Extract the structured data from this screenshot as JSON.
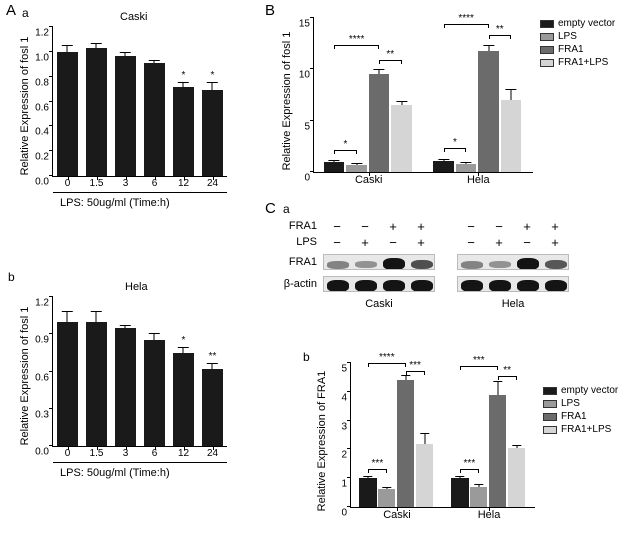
{
  "panelA": {
    "label_A": "A",
    "label_a": "a",
    "label_b": "b",
    "chart_a": {
      "type": "bar",
      "title": "Caski",
      "ylabel": "Relative Expression of fosl 1",
      "xlabel": "LPS: 50ug/ml (Time:h)",
      "categories": [
        "0",
        "1.5",
        "3",
        "6",
        "12",
        "24"
      ],
      "values": [
        1.0,
        1.03,
        0.97,
        0.91,
        0.72,
        0.69
      ],
      "errors": [
        0.05,
        0.03,
        0.02,
        0.02,
        0.03,
        0.06
      ],
      "sig": [
        "",
        "",
        "",
        "",
        "*",
        "*"
      ],
      "ylim": [
        0,
        1.2
      ],
      "ytick_step": 0.2,
      "bar_color": "#1a1a1a",
      "background_color": "#ffffff"
    },
    "chart_b": {
      "type": "bar",
      "title": "Hela",
      "ylabel": "Relative Expression of fosl 1",
      "xlabel": "LPS: 50ug/ml (Time:h)",
      "categories": [
        "0",
        "1.5",
        "3",
        "6",
        "12",
        "24"
      ],
      "values": [
        1.0,
        1.0,
        0.95,
        0.85,
        0.75,
        0.62
      ],
      "errors": [
        0.08,
        0.08,
        0.02,
        0.05,
        0.04,
        0.04
      ],
      "sig": [
        "",
        "",
        "",
        "",
        "*",
        "**"
      ],
      "ylim": [
        0,
        1.2
      ],
      "ytick_step": 0.3,
      "bar_color": "#1a1a1a",
      "background_color": "#ffffff"
    }
  },
  "panelB": {
    "label": "B",
    "type": "grouped-bar",
    "ylabel": "Relative Expression of fosl 1",
    "groups": [
      "Caski",
      "Hela"
    ],
    "series": [
      "empty vector",
      "LPS",
      "FRA1",
      "FRA1+LPS"
    ],
    "series_colors": [
      "#1a1a1a",
      "#9a9a9a",
      "#6b6b6b",
      "#d5d5d5"
    ],
    "values": [
      [
        1.0,
        0.7,
        9.5,
        6.5
      ],
      [
        1.1,
        0.8,
        11.8,
        7.0
      ]
    ],
    "errors": [
      [
        0.1,
        0.1,
        0.4,
        0.3
      ],
      [
        0.1,
        0.1,
        0.5,
        1.0
      ]
    ],
    "ylim": [
      0,
      15
    ],
    "ytick_step": 5,
    "sig_pairs": [
      {
        "group": 0,
        "a": 0,
        "b": 1,
        "label": "*",
        "y": 2.0
      },
      {
        "group": 0,
        "a": 2,
        "b": 3,
        "label": "**",
        "y": 10.8
      },
      {
        "group": 0,
        "a": 0,
        "b": 2,
        "label": "****",
        "y": 12.3
      },
      {
        "group": 1,
        "a": 0,
        "b": 1,
        "label": "*",
        "y": 2.2
      },
      {
        "group": 1,
        "a": 2,
        "b": 3,
        "label": "**",
        "y": 13.2
      },
      {
        "group": 1,
        "a": 0,
        "b": 2,
        "label": "****",
        "y": 14.3
      }
    ]
  },
  "panelC": {
    "label_C": "C",
    "label_a": "a",
    "label_b": "b",
    "blot": {
      "row_labels_top": [
        "FRA1",
        "LPS"
      ],
      "row_labels_side": [
        "FRA1",
        "β-actin"
      ],
      "conditions": [
        "−",
        "−",
        "+",
        "+"
      ],
      "conditions2": [
        "−",
        "+",
        "−",
        "+"
      ],
      "cell_lines": [
        "Caski",
        "Hela"
      ],
      "fra1_intensity": [
        [
          0.25,
          0.15,
          1.0,
          0.6
        ],
        [
          0.25,
          0.15,
          1.0,
          0.55
        ]
      ],
      "actin_intensity": [
        [
          1,
          1,
          1,
          1
        ],
        [
          1,
          1,
          1,
          1
        ]
      ]
    },
    "chart_b": {
      "type": "grouped-bar",
      "ylabel": "Relative Expression of FRA1",
      "groups": [
        "Caski",
        "Hela"
      ],
      "series": [
        "empty vector",
        "LPS",
        "FRA1",
        "FRA1+LPS"
      ],
      "series_colors": [
        "#1a1a1a",
        "#9a9a9a",
        "#6b6b6b",
        "#d5d5d5"
      ],
      "values": [
        [
          1.0,
          0.62,
          4.4,
          2.2
        ],
        [
          1.0,
          0.7,
          3.9,
          2.05
        ]
      ],
      "errors": [
        [
          0.05,
          0.05,
          0.15,
          0.35
        ],
        [
          0.05,
          0.05,
          0.45,
          0.08
        ]
      ],
      "ylim": [
        0,
        5
      ],
      "ytick_step": 1,
      "sig_pairs": [
        {
          "group": 0,
          "a": 0,
          "b": 1,
          "label": "***",
          "y": 1.3
        },
        {
          "group": 0,
          "a": 2,
          "b": 3,
          "label": "***",
          "y": 4.7
        },
        {
          "group": 0,
          "a": 0,
          "b": 2,
          "label": "****",
          "y": 4.95
        },
        {
          "group": 1,
          "a": 0,
          "b": 1,
          "label": "***",
          "y": 1.3
        },
        {
          "group": 1,
          "a": 2,
          "b": 3,
          "label": "**",
          "y": 4.5
        },
        {
          "group": 1,
          "a": 0,
          "b": 2,
          "label": "***",
          "y": 4.85
        }
      ]
    }
  }
}
